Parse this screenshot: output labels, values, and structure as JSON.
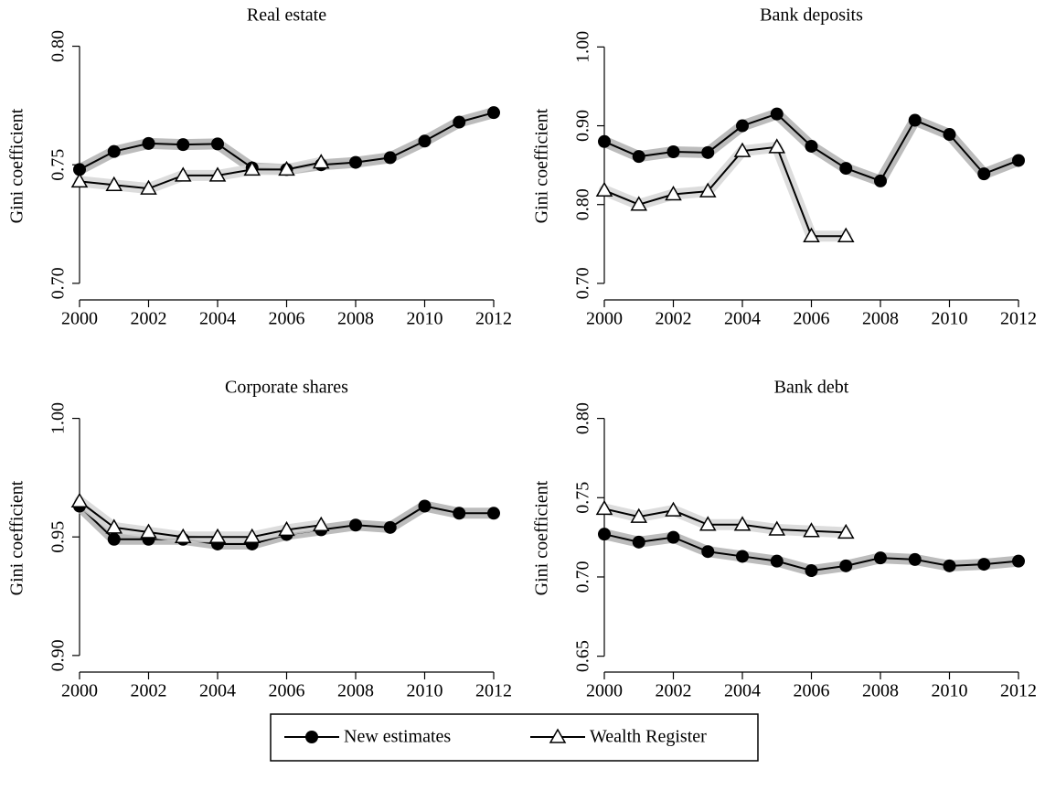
{
  "chart_data": [
    {
      "type": "line",
      "title": "Real estate",
      "y_label": "Gini coefficient",
      "x": [
        2000,
        2001,
        2002,
        2003,
        2004,
        2005,
        2006,
        2007,
        2008,
        2009,
        2010,
        2011,
        2012
      ],
      "xlim": [
        2000,
        2012
      ],
      "xticks": [
        2000,
        2002,
        2004,
        2006,
        2008,
        2010,
        2012
      ],
      "ylim": [
        0.693,
        0.806
      ],
      "yticks": [
        {
          "value": 0.7,
          "label": "0.70"
        },
        {
          "value": 0.75,
          "label": "0.75"
        },
        {
          "value": 0.8,
          "label": "0.80"
        }
      ],
      "series": [
        {
          "name": "New estimates",
          "color": "#000000",
          "marker": "circle",
          "values": [
            0.748,
            0.7556,
            0.759,
            0.7585,
            0.7588,
            0.7487,
            0.748,
            0.75,
            0.751,
            0.753,
            0.76,
            0.768,
            0.772
          ]
        },
        {
          "name": "Wealth Register",
          "color": "#000000",
          "marker": "triangle",
          "values": [
            0.743,
            0.7415,
            0.74,
            0.7455,
            0.7455,
            0.748,
            0.748,
            0.751,
            null,
            null,
            null,
            null,
            null
          ]
        }
      ]
    },
    {
      "type": "line",
      "title": "Bank deposits",
      "y_label": "Gini coefficient",
      "x": [
        2000,
        2001,
        2002,
        2003,
        2004,
        2005,
        2006,
        2007,
        2008,
        2009,
        2010,
        2011,
        2012
      ],
      "xlim": [
        2000,
        2012
      ],
      "xticks": [
        2000,
        2002,
        2004,
        2006,
        2008,
        2010,
        2012
      ],
      "ylim": [
        0.679,
        1.019
      ],
      "yticks": [
        {
          "value": 0.7,
          "label": "0.70"
        },
        {
          "value": 0.8,
          "label": "0.80"
        },
        {
          "value": 0.9,
          "label": "0.90"
        },
        {
          "value": 1.0,
          "label": "1.00"
        }
      ],
      "series": [
        {
          "color": "#000000",
          "marker": "circle",
          "values": [
            0.88,
            0.861,
            0.867,
            0.866,
            0.9,
            0.915,
            0.874,
            0.846,
            0.83,
            0.907,
            0.889,
            0.839,
            0.856
          ]
        },
        {
          "color": "#000000",
          "marker": "triangle",
          "values": [
            0.818,
            0.8,
            0.813,
            0.817,
            0.868,
            0.873,
            0.76,
            0.76,
            null,
            null,
            null,
            null,
            null
          ]
        }
      ]
    },
    {
      "type": "line",
      "title": "Corporate shares",
      "y_label": "Gini coefficient",
      "x": [
        2000,
        2001,
        2002,
        2003,
        2004,
        2005,
        2006,
        2007,
        2008,
        2009,
        2010,
        2011,
        2012
      ],
      "xlim": [
        2000,
        2012
      ],
      "xticks": [
        2000,
        2002,
        2004,
        2006,
        2008,
        2010,
        2012
      ],
      "ylim": [
        0.893,
        1.006
      ],
      "yticks": [
        {
          "value": 0.9,
          "label": "0.90"
        },
        {
          "value": 0.95,
          "label": "0.95"
        },
        {
          "value": 1.0,
          "label": "1.00"
        }
      ],
      "series": [
        {
          "color": "#000000",
          "marker": "circle",
          "values": [
            0.963,
            0.949,
            0.949,
            0.949,
            0.947,
            0.947,
            0.951,
            0.953,
            0.955,
            0.954,
            0.963,
            0.96,
            0.96
          ]
        },
        {
          "color": "#000000",
          "marker": "triangle",
          "values": [
            0.965,
            0.954,
            0.952,
            0.95,
            0.95,
            0.95,
            0.953,
            0.955,
            null,
            null,
            null,
            null,
            null
          ]
        }
      ]
    },
    {
      "type": "line",
      "title": "Bank debt",
      "y_label": "Gini coefficient",
      "x": [
        2000,
        2001,
        2002,
        2003,
        2004,
        2005,
        2006,
        2007,
        2008,
        2009,
        2010,
        2011,
        2012
      ],
      "xlim": [
        2000,
        2012
      ],
      "xticks": [
        2000,
        2002,
        2004,
        2006,
        2008,
        2010,
        2012
      ],
      "ylim": [
        0.64,
        0.809
      ],
      "yticks": [
        {
          "value": 0.65,
          "label": "0.65"
        },
        {
          "value": 0.7,
          "label": "0.70"
        },
        {
          "value": 0.75,
          "label": "0.75"
        },
        {
          "value": 0.8,
          "label": "0.80"
        }
      ],
      "series": [
        {
          "color": "#000000",
          "marker": "circle",
          "values": [
            0.727,
            0.722,
            0.725,
            0.716,
            0.713,
            0.71,
            0.704,
            0.707,
            0.712,
            0.711,
            0.707,
            0.708,
            0.71
          ]
        },
        {
          "color": "#000000",
          "marker": "triangle",
          "values": [
            0.743,
            0.738,
            0.742,
            0.733,
            0.733,
            0.73,
            0.729,
            0.728,
            null,
            null,
            null,
            null,
            null
          ]
        }
      ]
    }
  ]
}
